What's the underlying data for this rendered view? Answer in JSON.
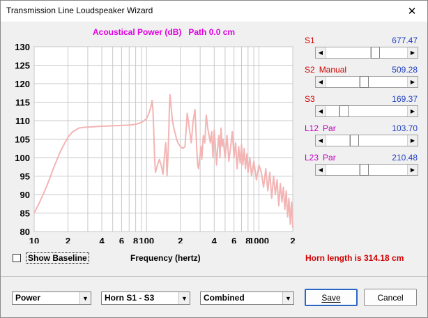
{
  "window": {
    "title": "Transmission Line Loudspeaker Wizard",
    "close_glyph": "✕"
  },
  "plot": {
    "title": "Acoustical Power (dB)   Path 0.0 cm"
  },
  "chart_data": {
    "type": "line",
    "ylim": [
      80,
      130
    ],
    "xlim": [
      10,
      2000
    ],
    "xscale": "log",
    "grid": true,
    "yticks": [
      80,
      85,
      90,
      95,
      100,
      105,
      110,
      115,
      120,
      125,
      130
    ],
    "xticks": [
      10,
      20,
      40,
      60,
      80,
      100,
      200,
      400,
      600,
      800,
      1000,
      2000
    ],
    "xticklabels": [
      "10",
      "2",
      "4",
      "6",
      "8",
      "100",
      "2",
      "4",
      "6",
      "8",
      "1000",
      "2"
    ],
    "xlabel": "Frequency (hertz)",
    "series": [
      {
        "color": "#f4b4b4",
        "x": [
          10,
          11,
          12,
          13,
          14,
          15,
          16,
          17,
          18,
          20,
          22,
          25,
          28,
          32,
          36,
          40,
          50,
          60,
          70,
          80,
          90,
          100,
          105,
          110,
          112,
          114,
          116,
          118,
          120,
          125,
          130,
          135,
          140,
          145,
          148,
          150,
          152,
          155,
          158,
          160,
          162,
          165,
          170,
          175,
          180,
          185,
          190,
          195,
          200,
          210,
          220,
          230,
          240,
          250,
          260,
          270,
          280,
          285,
          290,
          295,
          300,
          305,
          310,
          320,
          330,
          340,
          350,
          360,
          370,
          380,
          390,
          400,
          410,
          420,
          430,
          440,
          450,
          460,
          470,
          480,
          500,
          520,
          540,
          560,
          580,
          600,
          620,
          640,
          660,
          680,
          700,
          720,
          740,
          760,
          780,
          800,
          830,
          860,
          900,
          950,
          1000,
          1050,
          1100,
          1150,
          1200,
          1250,
          1300,
          1350,
          1400,
          1450,
          1500,
          1550,
          1600,
          1650,
          1700,
          1750,
          1800,
          1850,
          1900,
          1950,
          2000
        ],
        "values": [
          85,
          87.5,
          90,
          92.5,
          95,
          97.5,
          99.5,
          101.5,
          103,
          105.5,
          107,
          108,
          108.2,
          108.3,
          108.4,
          108.5,
          108.6,
          108.7,
          108.8,
          109,
          109.5,
          110.5,
          112,
          114,
          115.5,
          113,
          107,
          100,
          96,
          98,
          99.5,
          98,
          95.5,
          101,
          104,
          101,
          95,
          100,
          108,
          114,
          117,
          114,
          110,
          108,
          106.5,
          105,
          104,
          103.5,
          103,
          102.5,
          103,
          112,
          108,
          104,
          110,
          113,
          102,
          98,
          97,
          99,
          101,
          103,
          99.5,
          106,
          104,
          111.5,
          108,
          106,
          104,
          107,
          100,
          107.5,
          103,
          98,
          103,
          106,
          100,
          108,
          103,
          105,
          100,
          106,
          99,
          103,
          107,
          100,
          104,
          97,
          103,
          98.5,
          103.5,
          98,
          102.5,
          97,
          101,
          96,
          100,
          95,
          99,
          94,
          98,
          96,
          92,
          97,
          91,
          96,
          89,
          95,
          90,
          94,
          87,
          93,
          88,
          92,
          86,
          91,
          84,
          89,
          82,
          88,
          81
        ]
      }
    ]
  },
  "sliders": [
    {
      "label": "S1",
      "mode": "",
      "value": "677.47",
      "label_color": "#d00000",
      "mode_color": "#d00000",
      "thumb": 0.62
    },
    {
      "label": "S2",
      "mode": "Manual",
      "value": "509.28",
      "label_color": "#d00000",
      "mode_color": "#d00000",
      "thumb": 0.47
    },
    {
      "label": "S3",
      "mode": "",
      "value": "169.37",
      "label_color": "#d00000",
      "mode_color": "#d00000",
      "thumb": 0.18
    },
    {
      "label": "L12",
      "mode": "Par",
      "value": "103.70",
      "label_color": "#c000c0",
      "mode_color": "#c000c0",
      "thumb": 0.33
    },
    {
      "label": "L23",
      "mode": "Par",
      "value": "210.48",
      "label_color": "#c000c0",
      "mode_color": "#c000c0",
      "thumb": 0.47
    }
  ],
  "baseline": {
    "label": "Show Baseline",
    "checked": false
  },
  "freq_label": "Frequency (hertz)",
  "horn_length": "Horn length is 314.18 cm",
  "combos": [
    {
      "value": "Power",
      "name": "plot-type-select"
    },
    {
      "value": "Horn S1 - S3",
      "name": "horn-section-select"
    },
    {
      "value": "Combined",
      "name": "output-mode-select"
    }
  ],
  "buttons": {
    "save": "Save",
    "cancel": "Cancel"
  }
}
